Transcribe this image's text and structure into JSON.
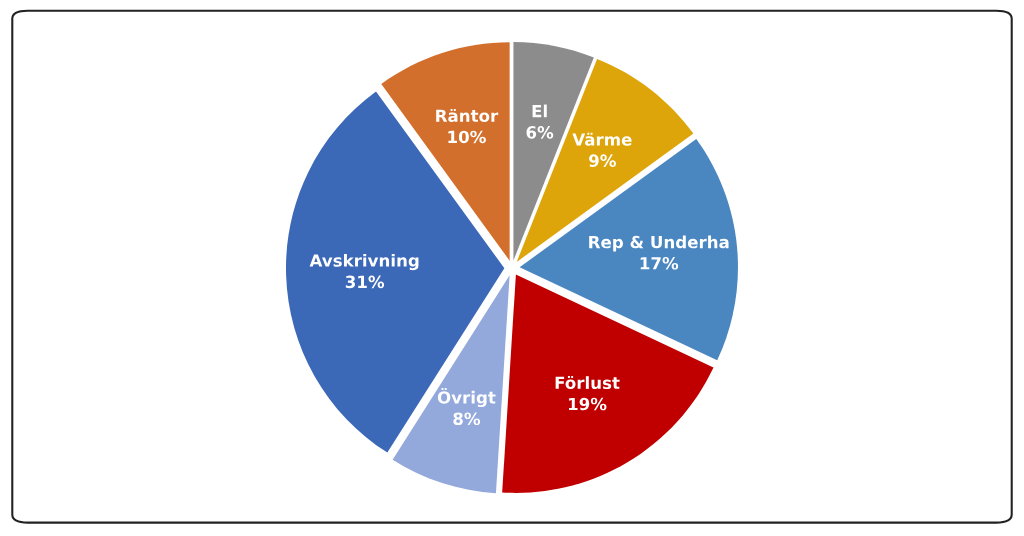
{
  "chart_data": {
    "type": "pie",
    "categories": [
      "El",
      "Värme",
      "Rep & Underha",
      "Förlust",
      "Övrigt",
      "Avskrivning",
      "Räntor"
    ],
    "values": [
      6,
      9,
      17,
      19,
      8,
      31,
      10
    ],
    "value_labels": [
      "6%",
      "9%",
      "17%",
      "19%",
      "8%",
      "31%",
      "10%"
    ],
    "colors": [
      "#8c8c8c",
      "#dda50a",
      "#4a86c0",
      "#c00000",
      "#93a9dc",
      "#3c68b8",
      "#d36f2c"
    ],
    "legend": false
  }
}
